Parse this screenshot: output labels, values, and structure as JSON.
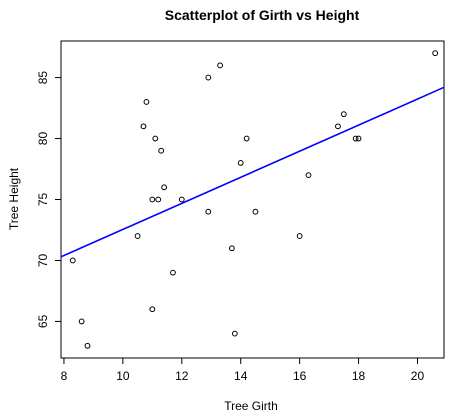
{
  "chart_data": {
    "type": "scatter",
    "title": "Scatterplot of Girth vs Height",
    "xlabel": "Tree Girth",
    "ylabel": "Tree Height",
    "xlim": [
      7.9,
      20.9
    ],
    "ylim": [
      62,
      88
    ],
    "x_ticks": [
      8,
      10,
      12,
      14,
      16,
      18,
      20
    ],
    "y_ticks": [
      65,
      70,
      75,
      80,
      85
    ],
    "grid": false,
    "point_color": "#000000",
    "line_color": "#0000ff",
    "points": [
      {
        "x": 8.3,
        "y": 70
      },
      {
        "x": 8.6,
        "y": 65
      },
      {
        "x": 8.8,
        "y": 63
      },
      {
        "x": 10.5,
        "y": 72
      },
      {
        "x": 10.7,
        "y": 81
      },
      {
        "x": 10.8,
        "y": 83
      },
      {
        "x": 11.0,
        "y": 66
      },
      {
        "x": 11.0,
        "y": 75
      },
      {
        "x": 11.1,
        "y": 80
      },
      {
        "x": 11.2,
        "y": 75
      },
      {
        "x": 11.3,
        "y": 79
      },
      {
        "x": 11.4,
        "y": 76
      },
      {
        "x": 11.7,
        "y": 69
      },
      {
        "x": 12.0,
        "y": 75
      },
      {
        "x": 12.9,
        "y": 74
      },
      {
        "x": 12.9,
        "y": 85
      },
      {
        "x": 13.3,
        "y": 86
      },
      {
        "x": 13.7,
        "y": 71
      },
      {
        "x": 13.8,
        "y": 64
      },
      {
        "x": 14.0,
        "y": 78
      },
      {
        "x": 14.2,
        "y": 80
      },
      {
        "x": 14.5,
        "y": 74
      },
      {
        "x": 16.0,
        "y": 72
      },
      {
        "x": 16.3,
        "y": 77
      },
      {
        "x": 17.3,
        "y": 81
      },
      {
        "x": 17.5,
        "y": 82
      },
      {
        "x": 17.9,
        "y": 80
      },
      {
        "x": 18.0,
        "y": 80
      },
      {
        "x": 20.6,
        "y": 87
      }
    ],
    "fit_line": {
      "x": [
        7.9,
        20.9
      ],
      "y": [
        70.3,
        84.2
      ]
    }
  }
}
